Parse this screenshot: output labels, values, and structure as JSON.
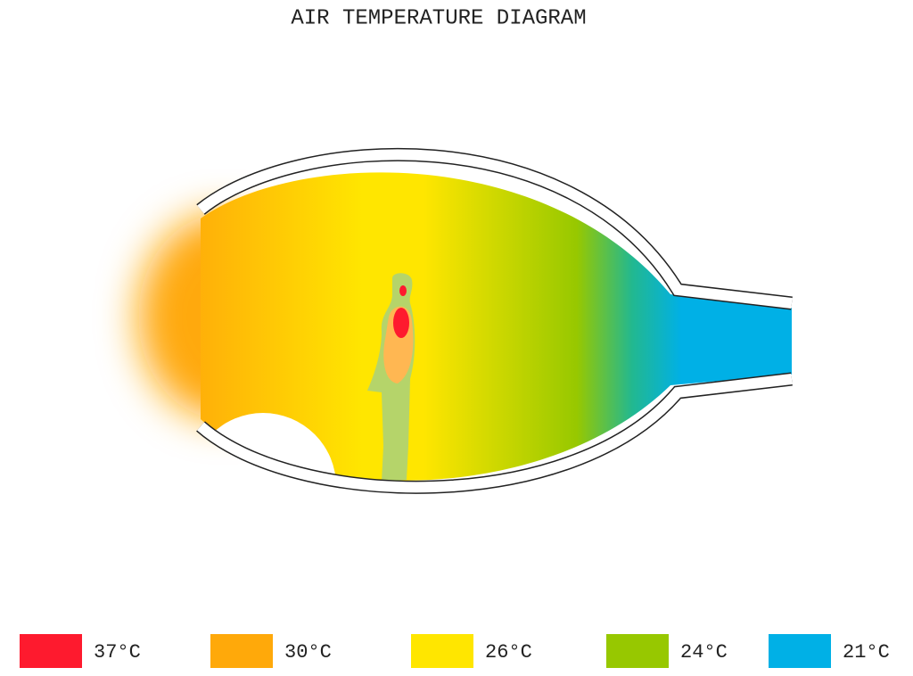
{
  "title": "AIR TEMPERATURE DIAGRAM",
  "legend": [
    {
      "label": "37°C",
      "color": "#fe1a2e"
    },
    {
      "label": "30°C",
      "color": "#ffa90a"
    },
    {
      "label": "26°C",
      "color": "#ffe600"
    },
    {
      "label": "24°C",
      "color": "#97c800"
    },
    {
      "label": "21°C",
      "color": "#00b0e6"
    }
  ]
}
